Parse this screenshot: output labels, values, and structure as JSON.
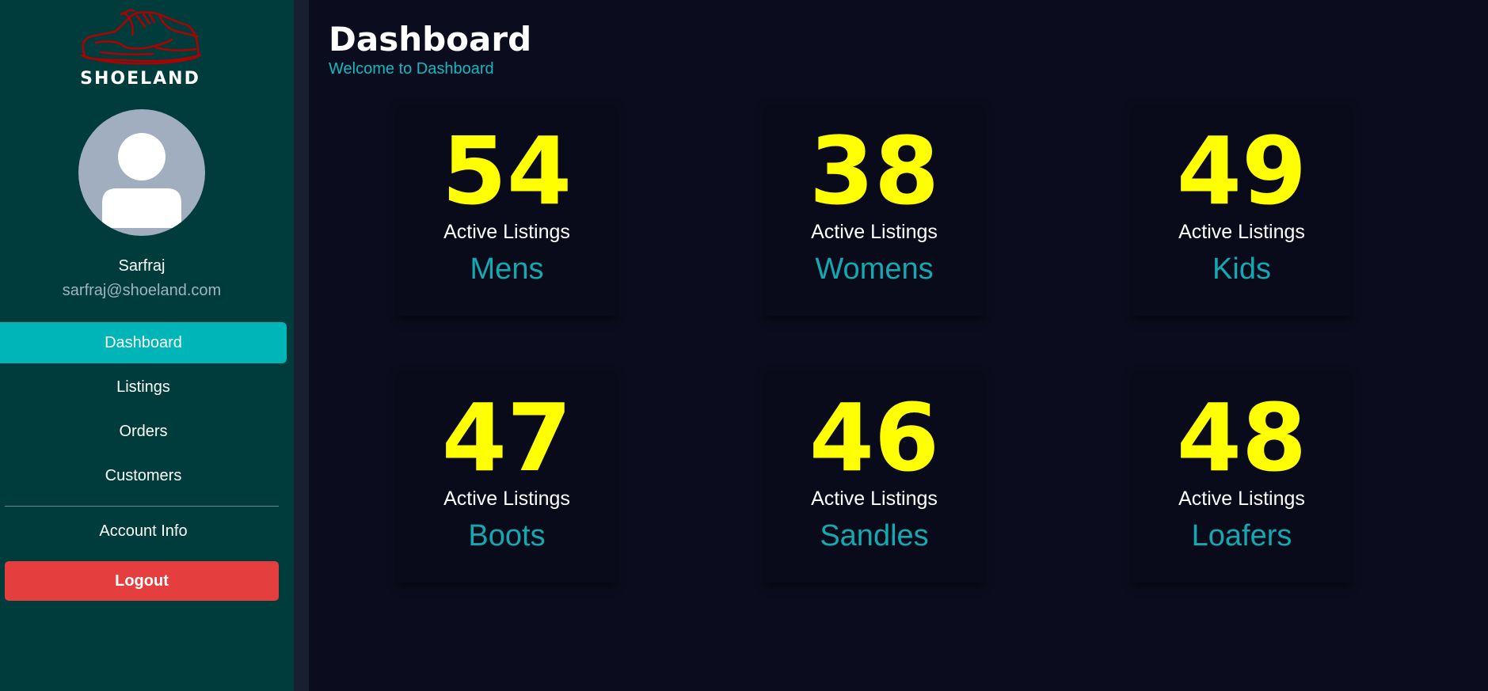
{
  "brand": {
    "name": "SHOELAND",
    "logo_icon": "shoe-icon",
    "accent": "#b00000"
  },
  "user": {
    "avatar_icon": "user-avatar-icon",
    "name": "Sarfraj",
    "email": "sarfraj@shoeland.com"
  },
  "sidebar": {
    "items": [
      {
        "label": "Dashboard",
        "active": true
      },
      {
        "label": "Listings",
        "active": false
      },
      {
        "label": "Orders",
        "active": false
      },
      {
        "label": "Customers",
        "active": false
      }
    ],
    "account_label": "Account Info",
    "logout_label": "Logout"
  },
  "header": {
    "title": "Dashboard",
    "subtitle": "Welcome to Dashboard"
  },
  "stats": [
    {
      "value": "54",
      "label": "Active Listings",
      "category": "Mens"
    },
    {
      "value": "38",
      "label": "Active Listings",
      "category": "Womens"
    },
    {
      "value": "49",
      "label": "Active Listings",
      "category": "Kids"
    },
    {
      "value": "47",
      "label": "Active Listings",
      "category": "Boots"
    },
    {
      "value": "46",
      "label": "Active Listings",
      "category": "Sandles"
    },
    {
      "value": "48",
      "label": "Active Listings",
      "category": "Loafers"
    }
  ],
  "colors": {
    "sidebar_bg": "#003c3c",
    "main_bg": "#0b0d1e",
    "active_nav": "#00b5b8",
    "logout": "#e53e3e",
    "stat_value": "#ffff00",
    "category": "#14a8b0"
  }
}
